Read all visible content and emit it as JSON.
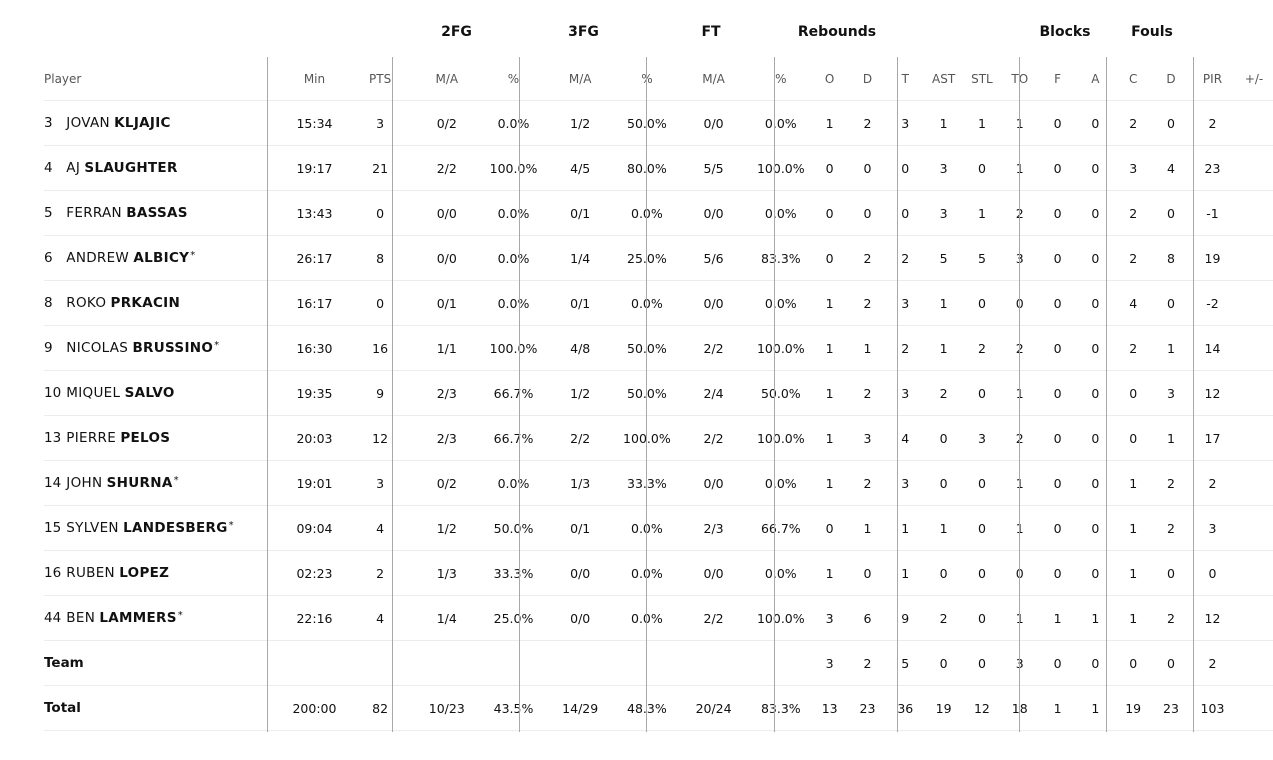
{
  "group_headers": {
    "fg2": "2FG",
    "fg3": "3FG",
    "ft": "FT",
    "rebounds": "Rebounds",
    "blocks": "Blocks",
    "fouls": "Fouls"
  },
  "columns": {
    "player": "Player",
    "min": "Min",
    "pts": "PTS",
    "fg2_ma": "M/A",
    "fg2_pct": "%",
    "fg3_ma": "M/A",
    "fg3_pct": "%",
    "ft_ma": "M/A",
    "ft_pct": "%",
    "reb_o": "O",
    "reb_d": "D",
    "reb_t": "T",
    "ast": "AST",
    "stl": "STL",
    "to": "TO",
    "blk_f": "F",
    "blk_a": "A",
    "foul_c": "C",
    "foul_d": "D",
    "pir": "PIR",
    "pm": "+/-"
  },
  "players": [
    {
      "num": "3",
      "first": "JOVAN",
      "last": "KLJAJIC",
      "star": "",
      "min": "15:34",
      "pts": "3",
      "fg2_ma": "0/2",
      "fg2_pct": "0.0%",
      "fg3_ma": "1/2",
      "fg3_pct": "50.0%",
      "ft_ma": "0/0",
      "ft_pct": "0.0%",
      "reb_o": "1",
      "reb_d": "2",
      "reb_t": "3",
      "ast": "1",
      "stl": "1",
      "to": "1",
      "blk_f": "0",
      "blk_a": "0",
      "foul_c": "2",
      "foul_d": "0",
      "pir": "2",
      "pm": ""
    },
    {
      "num": "4",
      "first": "AJ",
      "last": "SLAUGHTER",
      "star": "",
      "min": "19:17",
      "pts": "21",
      "fg2_ma": "2/2",
      "fg2_pct": "100.0%",
      "fg3_ma": "4/5",
      "fg3_pct": "80.0%",
      "ft_ma": "5/5",
      "ft_pct": "100.0%",
      "reb_o": "0",
      "reb_d": "0",
      "reb_t": "0",
      "ast": "3",
      "stl": "0",
      "to": "1",
      "blk_f": "0",
      "blk_a": "0",
      "foul_c": "3",
      "foul_d": "4",
      "pir": "23",
      "pm": ""
    },
    {
      "num": "5",
      "first": "FERRAN",
      "last": "BASSAS",
      "star": "",
      "min": "13:43",
      "pts": "0",
      "fg2_ma": "0/0",
      "fg2_pct": "0.0%",
      "fg3_ma": "0/1",
      "fg3_pct": "0.0%",
      "ft_ma": "0/0",
      "ft_pct": "0.0%",
      "reb_o": "0",
      "reb_d": "0",
      "reb_t": "0",
      "ast": "3",
      "stl": "1",
      "to": "2",
      "blk_f": "0",
      "blk_a": "0",
      "foul_c": "2",
      "foul_d": "0",
      "pir": "-1",
      "pm": ""
    },
    {
      "num": "6",
      "first": "ANDREW",
      "last": "ALBICY",
      "star": "*",
      "min": "26:17",
      "pts": "8",
      "fg2_ma": "0/0",
      "fg2_pct": "0.0%",
      "fg3_ma": "1/4",
      "fg3_pct": "25.0%",
      "ft_ma": "5/6",
      "ft_pct": "83.3%",
      "reb_o": "0",
      "reb_d": "2",
      "reb_t": "2",
      "ast": "5",
      "stl": "5",
      "to": "3",
      "blk_f": "0",
      "blk_a": "0",
      "foul_c": "2",
      "foul_d": "8",
      "pir": "19",
      "pm": ""
    },
    {
      "num": "8",
      "first": "ROKO",
      "last": "PRKACIN",
      "star": "",
      "min": "16:17",
      "pts": "0",
      "fg2_ma": "0/1",
      "fg2_pct": "0.0%",
      "fg3_ma": "0/1",
      "fg3_pct": "0.0%",
      "ft_ma": "0/0",
      "ft_pct": "0.0%",
      "reb_o": "1",
      "reb_d": "2",
      "reb_t": "3",
      "ast": "1",
      "stl": "0",
      "to": "0",
      "blk_f": "0",
      "blk_a": "0",
      "foul_c": "4",
      "foul_d": "0",
      "pir": "-2",
      "pm": ""
    },
    {
      "num": "9",
      "first": "NICOLAS",
      "last": "BRUSSINO",
      "star": "*",
      "min": "16:30",
      "pts": "16",
      "fg2_ma": "1/1",
      "fg2_pct": "100.0%",
      "fg3_ma": "4/8",
      "fg3_pct": "50.0%",
      "ft_ma": "2/2",
      "ft_pct": "100.0%",
      "reb_o": "1",
      "reb_d": "1",
      "reb_t": "2",
      "ast": "1",
      "stl": "2",
      "to": "2",
      "blk_f": "0",
      "blk_a": "0",
      "foul_c": "2",
      "foul_d": "1",
      "pir": "14",
      "pm": ""
    },
    {
      "num": "10",
      "first": "MIQUEL",
      "last": "SALVO",
      "star": "",
      "min": "19:35",
      "pts": "9",
      "fg2_ma": "2/3",
      "fg2_pct": "66.7%",
      "fg3_ma": "1/2",
      "fg3_pct": "50.0%",
      "ft_ma": "2/4",
      "ft_pct": "50.0%",
      "reb_o": "1",
      "reb_d": "2",
      "reb_t": "3",
      "ast": "2",
      "stl": "0",
      "to": "1",
      "blk_f": "0",
      "blk_a": "0",
      "foul_c": "0",
      "foul_d": "3",
      "pir": "12",
      "pm": ""
    },
    {
      "num": "13",
      "first": "PIERRE",
      "last": "PELOS",
      "star": "",
      "min": "20:03",
      "pts": "12",
      "fg2_ma": "2/3",
      "fg2_pct": "66.7%",
      "fg3_ma": "2/2",
      "fg3_pct": "100.0%",
      "ft_ma": "2/2",
      "ft_pct": "100.0%",
      "reb_o": "1",
      "reb_d": "3",
      "reb_t": "4",
      "ast": "0",
      "stl": "3",
      "to": "2",
      "blk_f": "0",
      "blk_a": "0",
      "foul_c": "0",
      "foul_d": "1",
      "pir": "17",
      "pm": ""
    },
    {
      "num": "14",
      "first": "JOHN",
      "last": "SHURNA",
      "star": "*",
      "min": "19:01",
      "pts": "3",
      "fg2_ma": "0/2",
      "fg2_pct": "0.0%",
      "fg3_ma": "1/3",
      "fg3_pct": "33.3%",
      "ft_ma": "0/0",
      "ft_pct": "0.0%",
      "reb_o": "1",
      "reb_d": "2",
      "reb_t": "3",
      "ast": "0",
      "stl": "0",
      "to": "1",
      "blk_f": "0",
      "blk_a": "0",
      "foul_c": "1",
      "foul_d": "2",
      "pir": "2",
      "pm": ""
    },
    {
      "num": "15",
      "first": "SYLVEN",
      "last": "LANDESBERG",
      "star": "*",
      "min": "09:04",
      "pts": "4",
      "fg2_ma": "1/2",
      "fg2_pct": "50.0%",
      "fg3_ma": "0/1",
      "fg3_pct": "0.0%",
      "ft_ma": "2/3",
      "ft_pct": "66.7%",
      "reb_o": "0",
      "reb_d": "1",
      "reb_t": "1",
      "ast": "1",
      "stl": "0",
      "to": "1",
      "blk_f": "0",
      "blk_a": "0",
      "foul_c": "1",
      "foul_d": "2",
      "pir": "3",
      "pm": ""
    },
    {
      "num": "16",
      "first": "RUBEN",
      "last": "LOPEZ",
      "star": "",
      "min": "02:23",
      "pts": "2",
      "fg2_ma": "1/3",
      "fg2_pct": "33.3%",
      "fg3_ma": "0/0",
      "fg3_pct": "0.0%",
      "ft_ma": "0/0",
      "ft_pct": "0.0%",
      "reb_o": "1",
      "reb_d": "0",
      "reb_t": "1",
      "ast": "0",
      "stl": "0",
      "to": "0",
      "blk_f": "0",
      "blk_a": "0",
      "foul_c": "1",
      "foul_d": "0",
      "pir": "0",
      "pm": ""
    },
    {
      "num": "44",
      "first": "BEN",
      "last": "LAMMERS",
      "star": "*",
      "min": "22:16",
      "pts": "4",
      "fg2_ma": "1/4",
      "fg2_pct": "25.0%",
      "fg3_ma": "0/0",
      "fg3_pct": "0.0%",
      "ft_ma": "2/2",
      "ft_pct": "100.0%",
      "reb_o": "3",
      "reb_d": "6",
      "reb_t": "9",
      "ast": "2",
      "stl": "0",
      "to": "1",
      "blk_f": "1",
      "blk_a": "1",
      "foul_c": "1",
      "foul_d": "2",
      "pir": "12",
      "pm": ""
    }
  ],
  "team": {
    "label": "Team",
    "min": "",
    "pts": "",
    "fg2_ma": "",
    "fg2_pct": "",
    "fg3_ma": "",
    "fg3_pct": "",
    "ft_ma": "",
    "ft_pct": "",
    "reb_o": "3",
    "reb_d": "2",
    "reb_t": "5",
    "ast": "0",
    "stl": "0",
    "to": "3",
    "blk_f": "0",
    "blk_a": "0",
    "foul_c": "0",
    "foul_d": "0",
    "pir": "2",
    "pm": ""
  },
  "total": {
    "label": "Total",
    "min": "200:00",
    "pts": "82",
    "fg2_ma": "10/23",
    "fg2_pct": "43.5%",
    "fg3_ma": "14/29",
    "fg3_pct": "48.3%",
    "ft_ma": "20/24",
    "ft_pct": "83.3%",
    "reb_o": "13",
    "reb_d": "23",
    "reb_t": "36",
    "ast": "19",
    "stl": "12",
    "to": "18",
    "blk_f": "1",
    "blk_a": "1",
    "foul_c": "19",
    "foul_d": "23",
    "pir": "103",
    "pm": ""
  }
}
